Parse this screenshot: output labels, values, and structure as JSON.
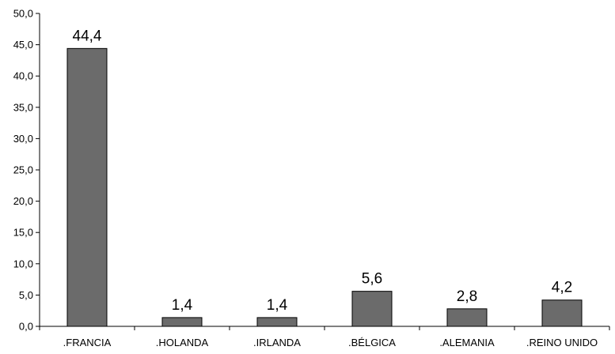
{
  "chart_data": {
    "type": "bar",
    "title": "",
    "xlabel": "",
    "ylabel": "",
    "categories": [
      ".FRANCIA",
      ".HOLANDA",
      ".IRLANDA",
      ".BÉLGICA",
      ".ALEMANIA",
      ".REINO UNIDO"
    ],
    "values": [
      44.4,
      1.4,
      1.4,
      5.6,
      2.8,
      4.2
    ],
    "value_labels": [
      "44,4",
      "1,4",
      "1,4",
      "5,6",
      "2,8",
      "4,2"
    ],
    "ylim": [
      0,
      50
    ],
    "yticks": [
      0,
      5,
      10,
      15,
      20,
      25,
      30,
      35,
      40,
      45,
      50
    ],
    "ytick_labels": [
      "0,0",
      "5,0",
      "10,0",
      "15,0",
      "20,0",
      "25,0",
      "30,0",
      "35,0",
      "40,0",
      "45,0",
      "50,0"
    ],
    "grid": false,
    "legend": "none",
    "colors": {
      "bar_fill": "#6b6b6b",
      "bar_stroke": "#000000",
      "axis": "#000000",
      "text": "#000000",
      "background": "#ffffff"
    }
  }
}
